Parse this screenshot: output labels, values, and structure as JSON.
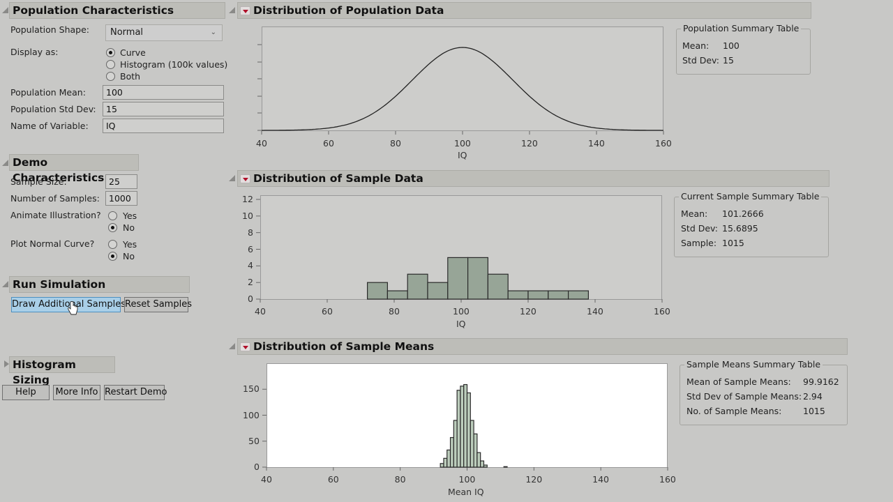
{
  "population_characteristics": {
    "title": "Population Characteristics",
    "shape_label": "Population Shape:",
    "shape_value": "Normal",
    "display_label": "Display as:",
    "display_options": [
      "Curve",
      "Histogram (100k values)",
      "Both"
    ],
    "display_selected": "Curve",
    "mean_label": "Population Mean:",
    "mean_value": "100",
    "sd_label": "Population Std Dev:",
    "sd_value": "15",
    "varname_label": "Name of Variable:",
    "varname_value": "IQ"
  },
  "demo_characteristics": {
    "title": "Demo Characteristics",
    "sample_size_label": "Sample Size:",
    "sample_size_value": "25",
    "num_samples_label": "Number of Samples:",
    "num_samples_value": "1000",
    "animate_label": "Animate Illustration?",
    "animate_options": [
      "Yes",
      "No"
    ],
    "animate_selected": "No",
    "plot_normal_label": "Plot Normal Curve?",
    "plot_normal_options": [
      "Yes",
      "No"
    ],
    "plot_normal_selected": "No"
  },
  "run_simulation": {
    "title": "Run Simulation",
    "draw_button": "Draw Additional Samples",
    "reset_button": "Reset Samples"
  },
  "histogram_sizing": {
    "title": "Histogram Sizing"
  },
  "footer_buttons": {
    "help": "Help",
    "more_info": "More Info",
    "restart": "Restart Demo"
  },
  "population_panel": {
    "title": "Distribution of Population Data",
    "summary": {
      "title": "Population Summary Table",
      "rows": [
        {
          "label": "Mean:",
          "value": "100"
        },
        {
          "label": "Std Dev:",
          "value": "15"
        }
      ]
    }
  },
  "sample_panel": {
    "title": "Distribution of Sample Data",
    "summary": {
      "title": "Current Sample Summary Table",
      "rows": [
        {
          "label": "Mean:",
          "value": "101.2666"
        },
        {
          "label": "Std Dev:",
          "value": "15.6895"
        },
        {
          "label": "Sample:",
          "value": "1015"
        }
      ]
    }
  },
  "means_panel": {
    "title": "Distribution of Sample Means",
    "summary": {
      "title": "Sample Means Summary Table",
      "rows": [
        {
          "label": "Mean of Sample Means:",
          "value": "99.9162"
        },
        {
          "label": "Std Dev of Sample Means:",
          "value": "2.94"
        },
        {
          "label": "No. of Sample Means:",
          "value": "1015"
        }
      ]
    }
  },
  "colors": {
    "bar_fill_sample": "#97a597",
    "bar_fill_means": "#bccdbc",
    "plot_bg": "#cdcdcb",
    "means_plot_bg": "#ffffff",
    "highlight_button": "#a9cfe8",
    "menu_red": "#b0102a"
  },
  "chart_data": [
    {
      "type": "line",
      "title": "Distribution of Population Data",
      "xlabel": "IQ",
      "ylabel": "",
      "xlim": [
        40,
        160
      ],
      "x_ticks": [
        40,
        60,
        80,
        100,
        120,
        140,
        160
      ],
      "curve": "normal density",
      "mean": 100,
      "sd": 15
    },
    {
      "type": "bar",
      "title": "Distribution of Sample Data",
      "xlabel": "IQ",
      "ylabel": "",
      "xlim": [
        40,
        160
      ],
      "ylim": [
        0,
        12
      ],
      "x_ticks": [
        40,
        60,
        80,
        100,
        120,
        140,
        160
      ],
      "y_ticks": [
        0,
        2,
        4,
        6,
        8,
        10,
        12
      ],
      "bin_edges": [
        72,
        78,
        84,
        90,
        96,
        102,
        108,
        114,
        120,
        126,
        132,
        138
      ],
      "values": [
        2,
        1,
        3,
        2,
        5,
        5,
        3,
        1,
        1,
        1,
        1
      ]
    },
    {
      "type": "bar",
      "title": "Distribution of Sample Means",
      "xlabel": "Mean IQ",
      "ylabel": "",
      "xlim": [
        40,
        160
      ],
      "ylim": [
        0,
        200
      ],
      "x_ticks": [
        40,
        60,
        80,
        100,
        120,
        140,
        160
      ],
      "y_ticks": [
        0,
        50,
        100,
        150
      ],
      "bin_edges": [
        92,
        93,
        94,
        95,
        96,
        97,
        98,
        99,
        100,
        101,
        102,
        103,
        104,
        105,
        106,
        107,
        108,
        109,
        110,
        111,
        112
      ],
      "values": [
        7,
        17,
        33,
        57,
        90,
        148,
        156,
        159,
        143,
        90,
        64,
        28,
        12,
        4,
        0,
        0,
        0,
        0,
        0,
        1
      ]
    }
  ]
}
